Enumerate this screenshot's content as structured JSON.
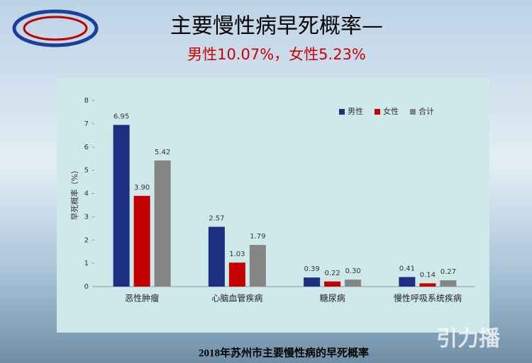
{
  "title": "主要慢性病早死概率—",
  "subtitle": "男性10.07%，女性5.23%",
  "caption": "2018年苏州市主要慢性病的早死概率",
  "watermark": "引力播",
  "chart_data": {
    "type": "bar",
    "y_label": "早死概率（%）",
    "categories": [
      "恶性肿瘤",
      "心脑血管疾病",
      "糖尿病",
      "慢性呼吸系统疾病"
    ],
    "series": [
      {
        "name": "男性",
        "color": "#1c2f80",
        "values": [
          6.95,
          2.57,
          0.39,
          0.41
        ],
        "value_labels": [
          "6.95",
          "2.57",
          "0.39",
          "0.41"
        ]
      },
      {
        "name": "女性",
        "color": "#c40000",
        "values": [
          3.9,
          1.03,
          0.22,
          0.14
        ],
        "value_labels": [
          "3.90",
          "1.03",
          "0.22",
          "0.14"
        ]
      },
      {
        "name": "合计",
        "color": "#858585",
        "values": [
          5.42,
          1.79,
          0.3,
          0.27
        ],
        "value_labels": [
          "5.42",
          "1.79",
          "0.30",
          "0.27"
        ]
      }
    ],
    "ylim": [
      0,
      8
    ],
    "yticks": [
      0,
      1,
      2,
      3,
      4,
      5,
      6,
      7,
      8
    ],
    "legend": "top-right"
  }
}
